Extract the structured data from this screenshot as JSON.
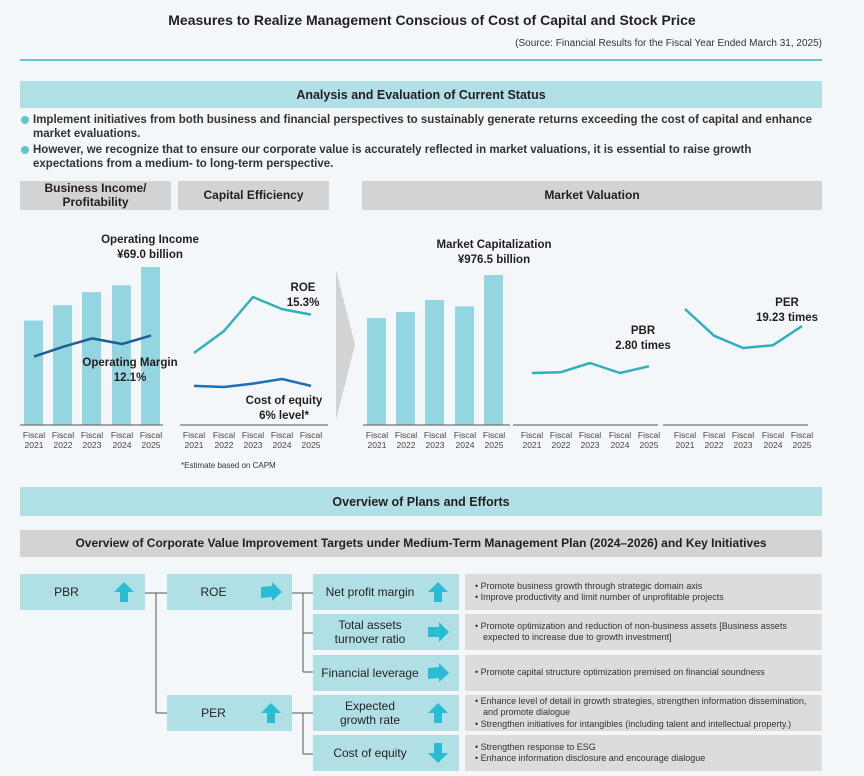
{
  "header": {
    "title": "Measures to Realize Management Conscious of Cost of Capital and Stock Price",
    "source": "(Source: Financial Results for the Fiscal Year Ended March 31, 2025)"
  },
  "analysis": {
    "band": "Analysis and Evaluation of Current Status",
    "bullets": [
      "Implement initiatives from both business and financial perspectives to sustainably generate returns exceeding the cost of capital and enhance market evaluations.",
      "However, we recognize that to ensure our corporate value is accurately reflected in market valuations, it is essential to raise growth expectations from a medium- to long-term perspective."
    ],
    "sections": {
      "business": "Business Income/ Profitability",
      "capital": "Capital Efficiency",
      "market": "Market Valuation"
    },
    "footnote": "*Estimate based on CAPM"
  },
  "chart_data": [
    {
      "type": "bar",
      "title": "Operating Income",
      "value_label": "¥69.0 billion",
      "categories": [
        "Fiscal 2021",
        "Fiscal 2022",
        "Fiscal 2023",
        "Fiscal 2024",
        "Fiscal 2025"
      ],
      "values": [
        45.6,
        52.3,
        58.0,
        61.0,
        69.0
      ],
      "unit": "¥ billion (estimated; only final value labeled)",
      "line_series": {
        "name": "Operating Margin",
        "value_label": "12.1%",
        "values": [
          10.6,
          11.3,
          11.9,
          11.5,
          12.1
        ],
        "unit": "% (estimated; only final value labeled)"
      }
    },
    {
      "type": "line",
      "categories": [
        "Fiscal 2021",
        "Fiscal 2022",
        "Fiscal 2023",
        "Fiscal 2024",
        "Fiscal 2025"
      ],
      "series": [
        {
          "name": "ROE",
          "value_label": "15.3%",
          "values": [
            11.8,
            13.8,
            16.9,
            15.8,
            15.3
          ]
        },
        {
          "name": "Cost of equity",
          "value_label": "6% level*",
          "values": [
            6.0,
            5.9,
            6.2,
            6.6,
            6.0
          ]
        }
      ],
      "unit": "% (estimated; only final values labeled)"
    },
    {
      "type": "bar",
      "title": "Market Capitalization",
      "value_label": "¥976.5 billion",
      "categories": [
        "Fiscal 2021",
        "Fiscal 2022",
        "Fiscal 2023",
        "Fiscal 2024",
        "Fiscal 2025"
      ],
      "values": [
        696,
        736,
        814,
        772,
        976.5
      ],
      "unit": "¥ billion (estimated; only final value labeled)"
    },
    {
      "type": "line",
      "categories": [
        "Fiscal 2021",
        "Fiscal 2022",
        "Fiscal 2023",
        "Fiscal 2024",
        "Fiscal 2025"
      ],
      "series": [
        {
          "name": "PBR",
          "value_label": "2.80 times",
          "values": [
            2.55,
            2.58,
            2.92,
            2.55,
            2.8
          ]
        }
      ],
      "unit": "times (estimated; only final value labeled)"
    },
    {
      "type": "line",
      "categories": [
        "Fiscal 2021",
        "Fiscal 2022",
        "Fiscal 2023",
        "Fiscal 2024",
        "Fiscal 2025"
      ],
      "series": [
        {
          "name": "PER",
          "value_label": "19.23 times",
          "values": [
            22.3,
            17.5,
            15.3,
            15.8,
            19.23
          ]
        }
      ],
      "unit": "times (estimated; only final value labeled)"
    }
  ],
  "plans": {
    "band": "Overview of Plans and Efforts",
    "subband": "Overview of Corporate Value Improvement Targets under Medium-Term Management Plan (2024–2026) and Key Initiatives",
    "tree": {
      "root": {
        "label": "PBR",
        "direction": "up"
      },
      "mid": [
        {
          "label": "ROE",
          "direction": "right"
        },
        {
          "label": "PER",
          "direction": "up"
        }
      ],
      "leaves": [
        {
          "label": "Net profit margin",
          "direction": "up",
          "notes": [
            "Promote business growth through strategic domain axis",
            "Improve productivity and limit number of unprofitable projects"
          ]
        },
        {
          "label": "Total assets turnover ratio",
          "direction": "right",
          "notes": [
            "Promote optimization and reduction of non-business assets [Business assets expected to increase due to growth investment]"
          ]
        },
        {
          "label": "Financial leverage",
          "direction": "right",
          "notes": [
            "Promote capital structure optimization premised on financial soundness"
          ]
        },
        {
          "label": "Expected growth rate",
          "direction": "up",
          "notes": [
            "Enhance level of detail in growth strategies, strengthen information dissemination, and promote dialogue",
            "Strengthen initiatives for intangibles (including talent and intellectual property.)"
          ]
        },
        {
          "label": "Cost of equity",
          "direction": "down",
          "notes": [
            "Strengthen response to ESG",
            "Enhance information disclosure and encourage dialogue"
          ]
        }
      ]
    }
  },
  "colors": {
    "bar": "#93d5e0",
    "teal_line": "#30b0ba",
    "navy_line": "#1f5f96",
    "equity_line": "#1e6fb3",
    "arrow": "#29bcd3",
    "band": "#b0e0e6",
    "gray_band": "#d3d3d4"
  }
}
